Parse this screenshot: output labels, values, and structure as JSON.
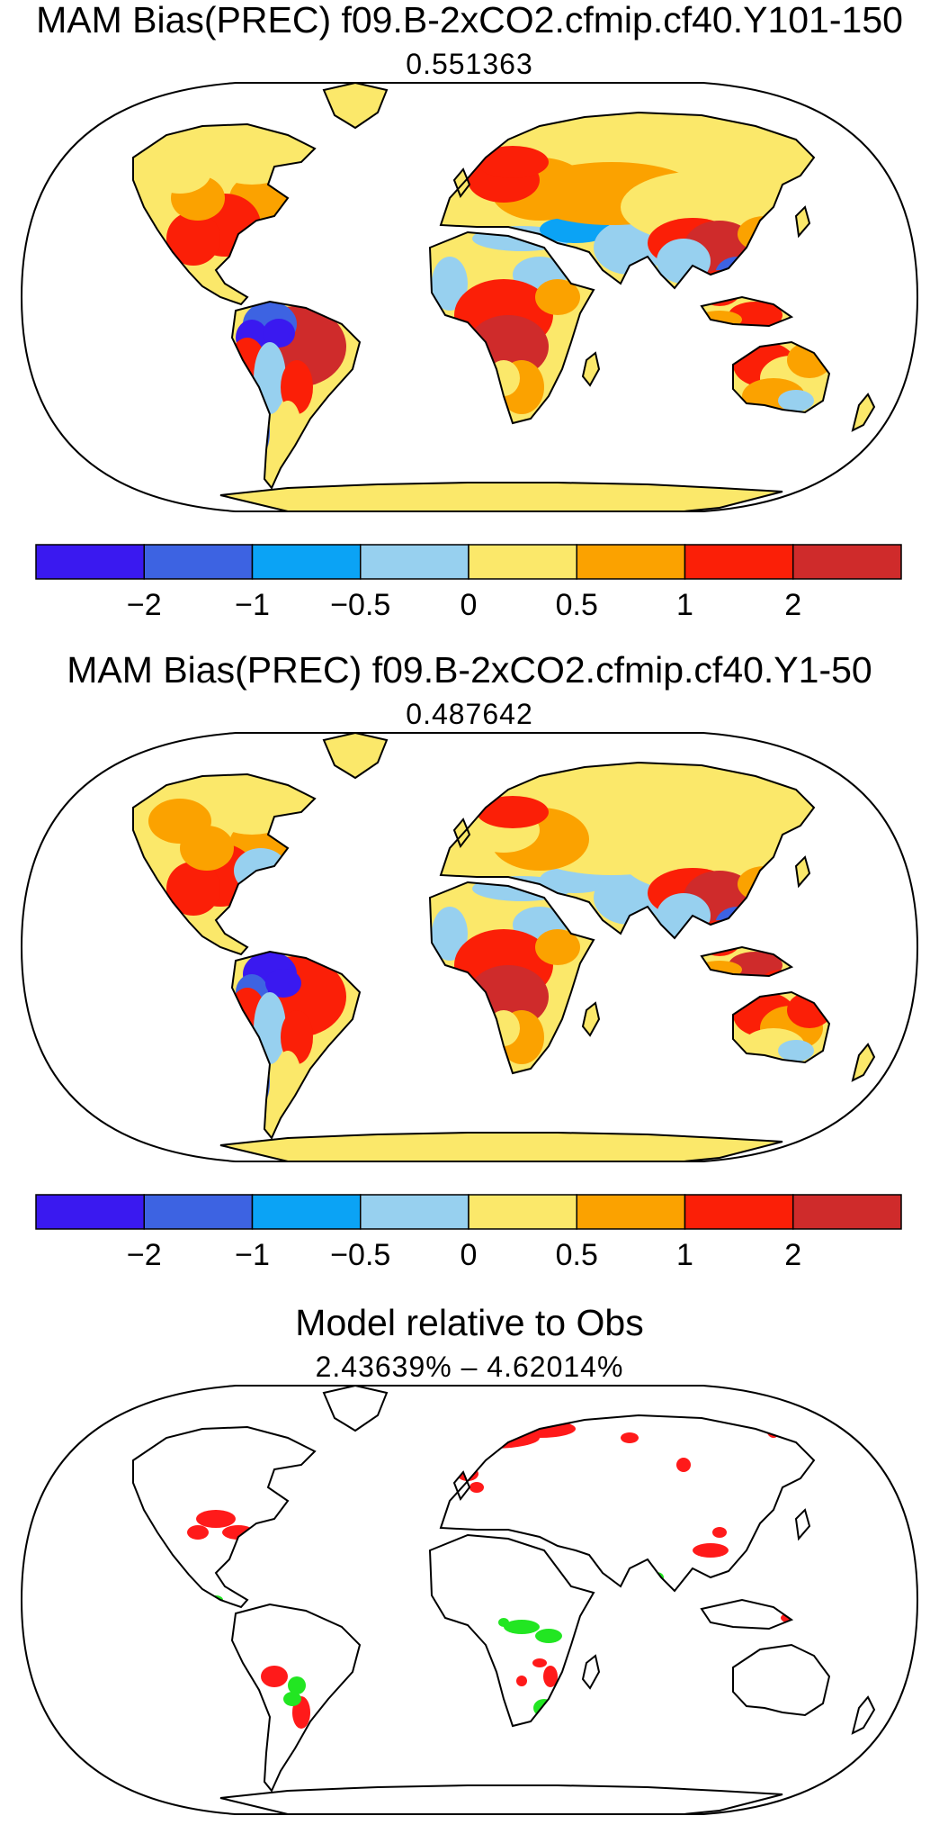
{
  "panels": [
    {
      "title": "MAM Bias(PREC) f09.B-2xCO2.cfmip.cf40.Y101-150",
      "subtitle": "0.551363",
      "variant": "y101"
    },
    {
      "title": "MAM Bias(PREC) f09.B-2xCO2.cfmip.cf40.Y1-50",
      "subtitle": "0.487642",
      "variant": "y1"
    },
    {
      "title": "Model relative to Obs",
      "subtitle": "2.43639% – 4.62014%",
      "variant": "rel"
    }
  ],
  "colorbar": {
    "colors": [
      "#3a19f0",
      "#3d63e2",
      "#0ba3f5",
      "#97d0ef",
      "#fbe86a",
      "#fba200",
      "#fb1f07",
      "#cf2b2b"
    ],
    "tick_labels": [
      "−2",
      "−1",
      "−0.5",
      "0",
      "0.5",
      "1",
      "2"
    ]
  },
  "relative_colors": {
    "worse": "#ff1a1a",
    "better": "#22e622"
  }
}
